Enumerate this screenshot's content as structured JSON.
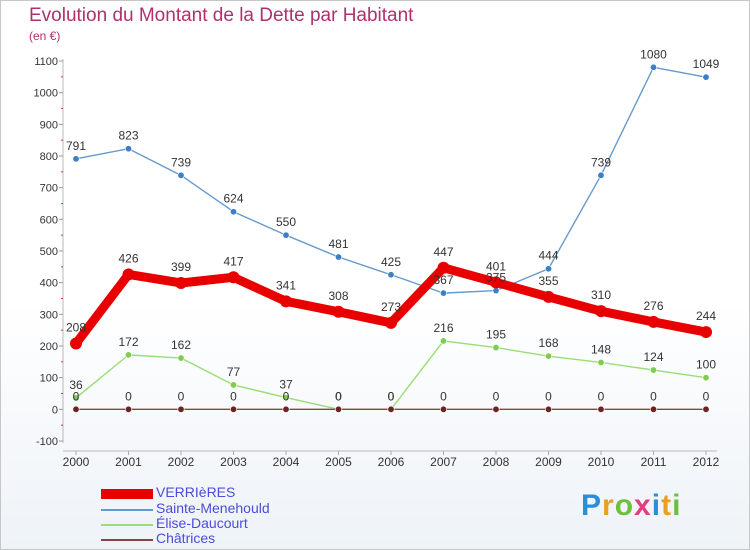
{
  "title": "Evolution du Montant de la Dette par Habitant",
  "subtitle": "(en €)",
  "logo": "Proxiti",
  "chart_data": {
    "type": "line",
    "x": [
      "2000",
      "2001",
      "2002",
      "2003",
      "2004",
      "2005",
      "2006",
      "2007",
      "2008",
      "2009",
      "2010",
      "2011",
      "2012"
    ],
    "ylim": [
      -100,
      1100
    ],
    "yticks": [
      -100,
      0,
      100,
      200,
      300,
      400,
      500,
      600,
      700,
      800,
      900,
      1000,
      1100
    ],
    "grid": false,
    "legend_position": "bottom-left",
    "series": [
      {
        "name": "VERRIèRES",
        "color": "#e80000",
        "values": [
          208,
          426,
          399,
          417,
          341,
          308,
          273,
          447,
          401,
          355,
          310,
          276,
          244
        ],
        "labels": [
          "208",
          "426",
          "399",
          "417",
          "341",
          "308",
          "273",
          "447",
          "401",
          "355",
          "310",
          "276",
          "244"
        ]
      },
      {
        "name": "Sainte-Menehould",
        "color": "#6699cc",
        "values": [
          791,
          823,
          739,
          624,
          550,
          481,
          425,
          367,
          375,
          444,
          739,
          1080,
          1049
        ],
        "labels": [
          "791",
          "823",
          "739",
          "624",
          "550",
          "481",
          "425",
          "367",
          "375",
          "444",
          "739",
          "1080",
          "1049"
        ]
      },
      {
        "name": "Élise-Daucourt",
        "color": "#99dd77",
        "values": [
          36,
          172,
          162,
          77,
          37,
          0,
          0,
          216,
          195,
          168,
          148,
          124,
          100
        ],
        "labels": [
          "36",
          "172",
          "162",
          "77",
          "37",
          "0",
          "0",
          "216",
          "195",
          "168",
          "148",
          "124",
          "100"
        ]
      },
      {
        "name": "Châtrices",
        "color": "#884444",
        "values": [
          0,
          0,
          0,
          0,
          0,
          0,
          0,
          0,
          0,
          0,
          0,
          0,
          0
        ],
        "labels": [
          "0",
          "0",
          "0",
          "0",
          "0",
          "0",
          "0",
          "0",
          "0",
          "0",
          "0",
          "0",
          "0"
        ]
      }
    ]
  }
}
